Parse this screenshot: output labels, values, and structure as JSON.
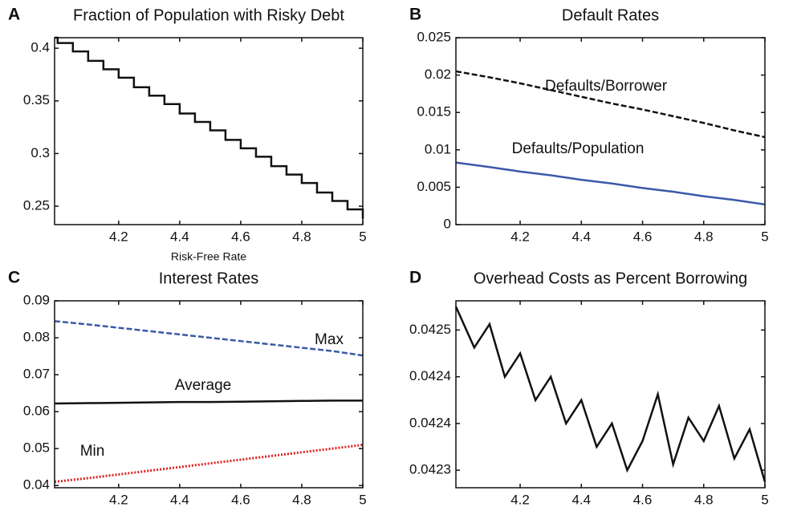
{
  "chart_data": [
    {
      "type": "line",
      "label": "A",
      "title": "Fraction of Population with Risky Debt",
      "xlabel": "Risk-Free Rate",
      "step": true,
      "x": [
        3.99,
        4.0,
        4.05,
        4.1,
        4.15,
        4.2,
        4.25,
        4.3,
        4.35,
        4.4,
        4.45,
        4.5,
        4.55,
        4.6,
        4.65,
        4.7,
        4.75,
        4.8,
        4.85,
        4.9,
        4.95,
        5.0
      ],
      "series": [
        {
          "color": "#111111",
          "style": "solid",
          "values": [
            0.41,
            0.405,
            0.397,
            0.388,
            0.38,
            0.372,
            0.363,
            0.355,
            0.347,
            0.338,
            0.33,
            0.322,
            0.313,
            0.305,
            0.297,
            0.288,
            0.28,
            0.272,
            0.263,
            0.255,
            0.247,
            0.238
          ]
        }
      ],
      "xlim": [
        3.99,
        5.0
      ],
      "xticks": [
        4.2,
        4.4,
        4.6,
        4.8,
        5
      ],
      "ylim": [
        0.2325,
        0.41
      ],
      "yticks": [
        0.25,
        0.3,
        0.35,
        0.4
      ]
    },
    {
      "type": "line",
      "label": "B",
      "title": "Default Rates",
      "x": [
        3.99,
        4.1,
        4.2,
        4.3,
        4.4,
        4.5,
        4.6,
        4.7,
        4.8,
        4.9,
        5.0
      ],
      "series": [
        {
          "name": "Defaults/Borrower",
          "color": "#111111",
          "style": "dashed",
          "values": [
            0.0205,
            0.0197,
            0.0189,
            0.018,
            0.0171,
            0.0162,
            0.0154,
            0.0145,
            0.0136,
            0.0126,
            0.0117
          ]
        },
        {
          "name": "Defaults/Population",
          "color": "#3a5aa8",
          "style": "solid",
          "values": [
            0.0083,
            0.0077,
            0.0071,
            0.0066,
            0.006,
            0.0055,
            0.0049,
            0.0044,
            0.0038,
            0.0033,
            0.0027
          ]
        }
      ],
      "xlim": [
        3.99,
        5.0
      ],
      "xticks": [
        4.2,
        4.4,
        4.6,
        4.8,
        5
      ],
      "ylim": [
        0,
        0.025
      ],
      "yticks": [
        0,
        0.005,
        0.01,
        0.015,
        0.02,
        0.025
      ]
    },
    {
      "type": "line",
      "label": "C",
      "title": "Interest Rates",
      "x": [
        3.99,
        4.1,
        4.2,
        4.3,
        4.4,
        4.5,
        4.6,
        4.7,
        4.8,
        4.9,
        5.0
      ],
      "series": [
        {
          "name": "Max",
          "color": "#3a5aa8",
          "style": "dashed",
          "values": [
            0.0845,
            0.0836,
            0.0827,
            0.0818,
            0.0809,
            0.08,
            0.0791,
            0.0782,
            0.0773,
            0.0764,
            0.0752
          ]
        },
        {
          "name": "Average",
          "color": "#111111",
          "style": "solid",
          "values": [
            0.0622,
            0.0623,
            0.0624,
            0.0625,
            0.0626,
            0.0626,
            0.0627,
            0.0628,
            0.0629,
            0.063,
            0.063
          ]
        },
        {
          "name": "Min",
          "color": "#e02020",
          "style": "dotted",
          "values": [
            0.041,
            0.042,
            0.043,
            0.044,
            0.045,
            0.046,
            0.047,
            0.048,
            0.049,
            0.05,
            0.051
          ]
        }
      ],
      "xlim": [
        3.99,
        5.0
      ],
      "xticks": [
        4.2,
        4.4,
        4.6,
        4.8,
        5
      ],
      "ylim": [
        0.0394,
        0.09
      ],
      "yticks": [
        0.04,
        0.05,
        0.06,
        0.07,
        0.08,
        0.09
      ]
    },
    {
      "type": "line",
      "label": "D",
      "title": "Overhead Costs as Percent Borrowing",
      "x": [
        3.99,
        4.05,
        4.1,
        4.15,
        4.2,
        4.25,
        4.3,
        4.35,
        4.4,
        4.45,
        4.5,
        4.55,
        4.6,
        4.65,
        4.7,
        4.75,
        4.8,
        4.85,
        4.9,
        4.95,
        5.0
      ],
      "series": [
        {
          "color": "#111111",
          "style": "solid",
          "values": [
            0.04256,
            0.04249,
            0.04253,
            0.04244,
            0.04248,
            0.0424,
            0.04244,
            0.04236,
            0.0424,
            0.04232,
            0.04236,
            0.04228,
            0.04233,
            0.04241,
            0.04229,
            0.04237,
            0.04233,
            0.04239,
            0.0423,
            0.04235,
            0.04226
          ]
        }
      ],
      "xlim": [
        3.99,
        5.0
      ],
      "xticks": [
        4.2,
        4.4,
        4.6,
        4.8,
        5
      ],
      "ylim": [
        0.04225,
        0.04257
      ],
      "yticks": [
        {
          "value": 0.04252,
          "label": "0.0425"
        },
        {
          "value": 0.04244,
          "label": "0.0424"
        },
        {
          "value": 0.04236,
          "label": "0.0424"
        },
        {
          "value": 0.04228,
          "label": "0.0423"
        }
      ]
    }
  ]
}
